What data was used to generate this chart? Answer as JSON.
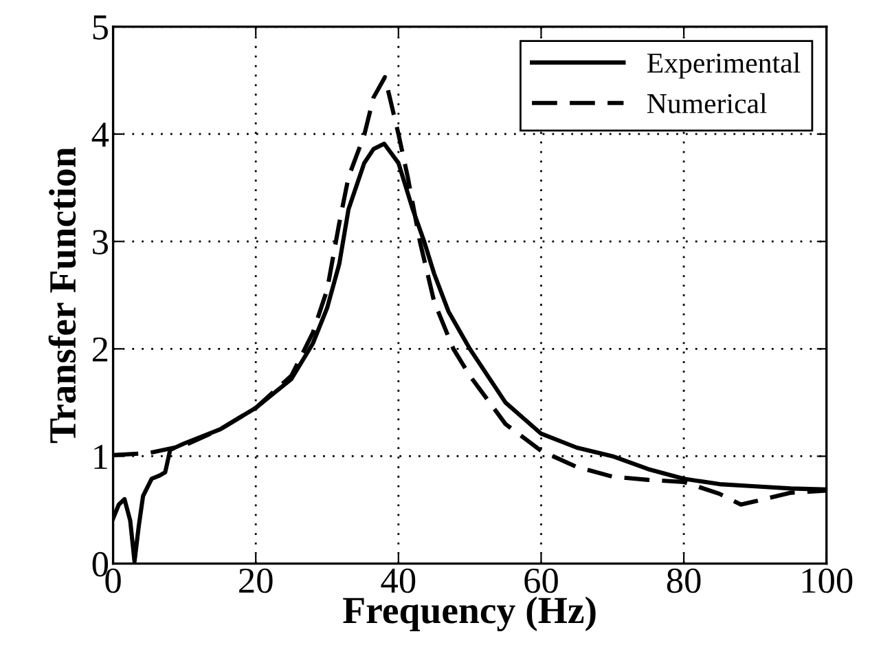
{
  "chart_data": {
    "type": "line",
    "xlabel": "Frequency (Hz)",
    "ylabel": "Transfer Function",
    "xlim": [
      0,
      100
    ],
    "ylim": [
      0,
      5
    ],
    "xticks": [
      0,
      20,
      40,
      60,
      80,
      100
    ],
    "yticks": [
      0,
      1,
      2,
      3,
      4,
      5
    ],
    "grid": true,
    "legend": "top right",
    "marker": "none",
    "series": [
      {
        "name": "Experimental",
        "color": "#000000",
        "line_style": "solid",
        "x": [
          0,
          0.8,
          1.6,
          2.4,
          3.0,
          3.6,
          4.2,
          5.4,
          6.5,
          7.3,
          8,
          10,
          15,
          20,
          25,
          28,
          30,
          31.7,
          33,
          35.2,
          36.5,
          38,
          40,
          42,
          43.6,
          45,
          47,
          50,
          55,
          60,
          65,
          70,
          75,
          80,
          85,
          90,
          95,
          100
        ],
        "values": [
          0.42,
          0.55,
          0.6,
          0.4,
          0.02,
          0.35,
          0.63,
          0.79,
          0.82,
          0.85,
          1.06,
          1.12,
          1.25,
          1.45,
          1.72,
          2.05,
          2.38,
          2.79,
          3.3,
          3.73,
          3.86,
          3.91,
          3.73,
          3.3,
          3.0,
          2.7,
          2.35,
          2.0,
          1.5,
          1.21,
          1.08,
          1.0,
          0.88,
          0.79,
          0.74,
          0.72,
          0.7,
          0.69
        ]
      },
      {
        "name": "Numerical",
        "color": "#000000",
        "line_style": "dashed",
        "x": [
          0,
          5,
          10,
          15,
          20,
          25,
          28,
          30,
          31.7,
          33,
          35.2,
          36.5,
          38.1,
          40,
          41.3,
          43,
          45,
          47.7,
          50,
          55,
          60,
          65,
          70,
          75,
          80,
          85,
          88,
          90,
          95,
          100
        ],
        "values": [
          1.01,
          1.03,
          1.1,
          1.25,
          1.45,
          1.75,
          2.15,
          2.55,
          3.17,
          3.6,
          3.99,
          4.34,
          4.53,
          4.0,
          3.6,
          3.0,
          2.44,
          2.0,
          1.75,
          1.3,
          1.05,
          0.9,
          0.81,
          0.78,
          0.76,
          0.65,
          0.55,
          0.58,
          0.66,
          0.68
        ]
      }
    ]
  }
}
